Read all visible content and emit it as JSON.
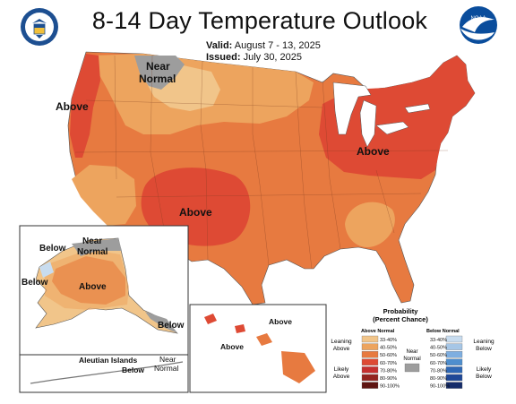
{
  "title": "8-14 Day Temperature Outlook",
  "valid": {
    "label": "Valid:",
    "value": "August 7 - 13, 2025"
  },
  "issued": {
    "label": "Issued:",
    "value": "July 30, 2025"
  },
  "logos": {
    "left": "doc-seal-icon",
    "right": "noaa-logo-icon"
  },
  "map_labels": {
    "above_west": "Above",
    "near_normal_north_1": "Near",
    "near_normal_north_2": "Normal",
    "above_southwest": "Above",
    "above_northeast": "Above",
    "ak_below": "Below",
    "ak_near_1": "Near",
    "ak_near_2": "Normal",
    "ak_below_west": "Below",
    "ak_above": "Above",
    "ak_below_se": "Below",
    "aleutian_title": "Aleutian Islands",
    "aleutian_below": "Below",
    "aleutian_near_1": "Near",
    "aleutian_near_2": "Normal",
    "hi_above_1": "Above",
    "hi_above_2": "Above"
  },
  "legend": {
    "title_1": "Probability",
    "title_2": "(Percent Chance)",
    "above_header": "Above Normal",
    "below_header": "Below Normal",
    "near_1": "Near",
    "near_2": "Normal",
    "leaning_above_1": "Leaning",
    "leaning_above_2": "Above",
    "likely_above_1": "Likely",
    "likely_above_2": "Above",
    "leaning_below_1": "Leaning",
    "leaning_below_2": "Below",
    "likely_below_1": "Likely",
    "likely_below_2": "Below",
    "above_bins": [
      {
        "label": "33-40%",
        "color": "#f1c58a"
      },
      {
        "label": "40-50%",
        "color": "#eda45e"
      },
      {
        "label": "50-60%",
        "color": "#e77a40"
      },
      {
        "label": "60-70%",
        "color": "#de4a34"
      },
      {
        "label": "70-80%",
        "color": "#c5302f"
      },
      {
        "label": "80-90%",
        "color": "#93241f"
      },
      {
        "label": "90-100%",
        "color": "#5e1512"
      }
    ],
    "below_bins": [
      {
        "label": "33-40%",
        "color": "#c8dcef"
      },
      {
        "label": "40-50%",
        "color": "#a6c6e6"
      },
      {
        "label": "50-60%",
        "color": "#7eaee0"
      },
      {
        "label": "60-70%",
        "color": "#4e8ece"
      },
      {
        "label": "70-80%",
        "color": "#2f68b5"
      },
      {
        "label": "80-90%",
        "color": "#1f4897"
      },
      {
        "label": "90-100%",
        "color": "#152c6a"
      }
    ],
    "near_color": "#9d9d9d"
  }
}
